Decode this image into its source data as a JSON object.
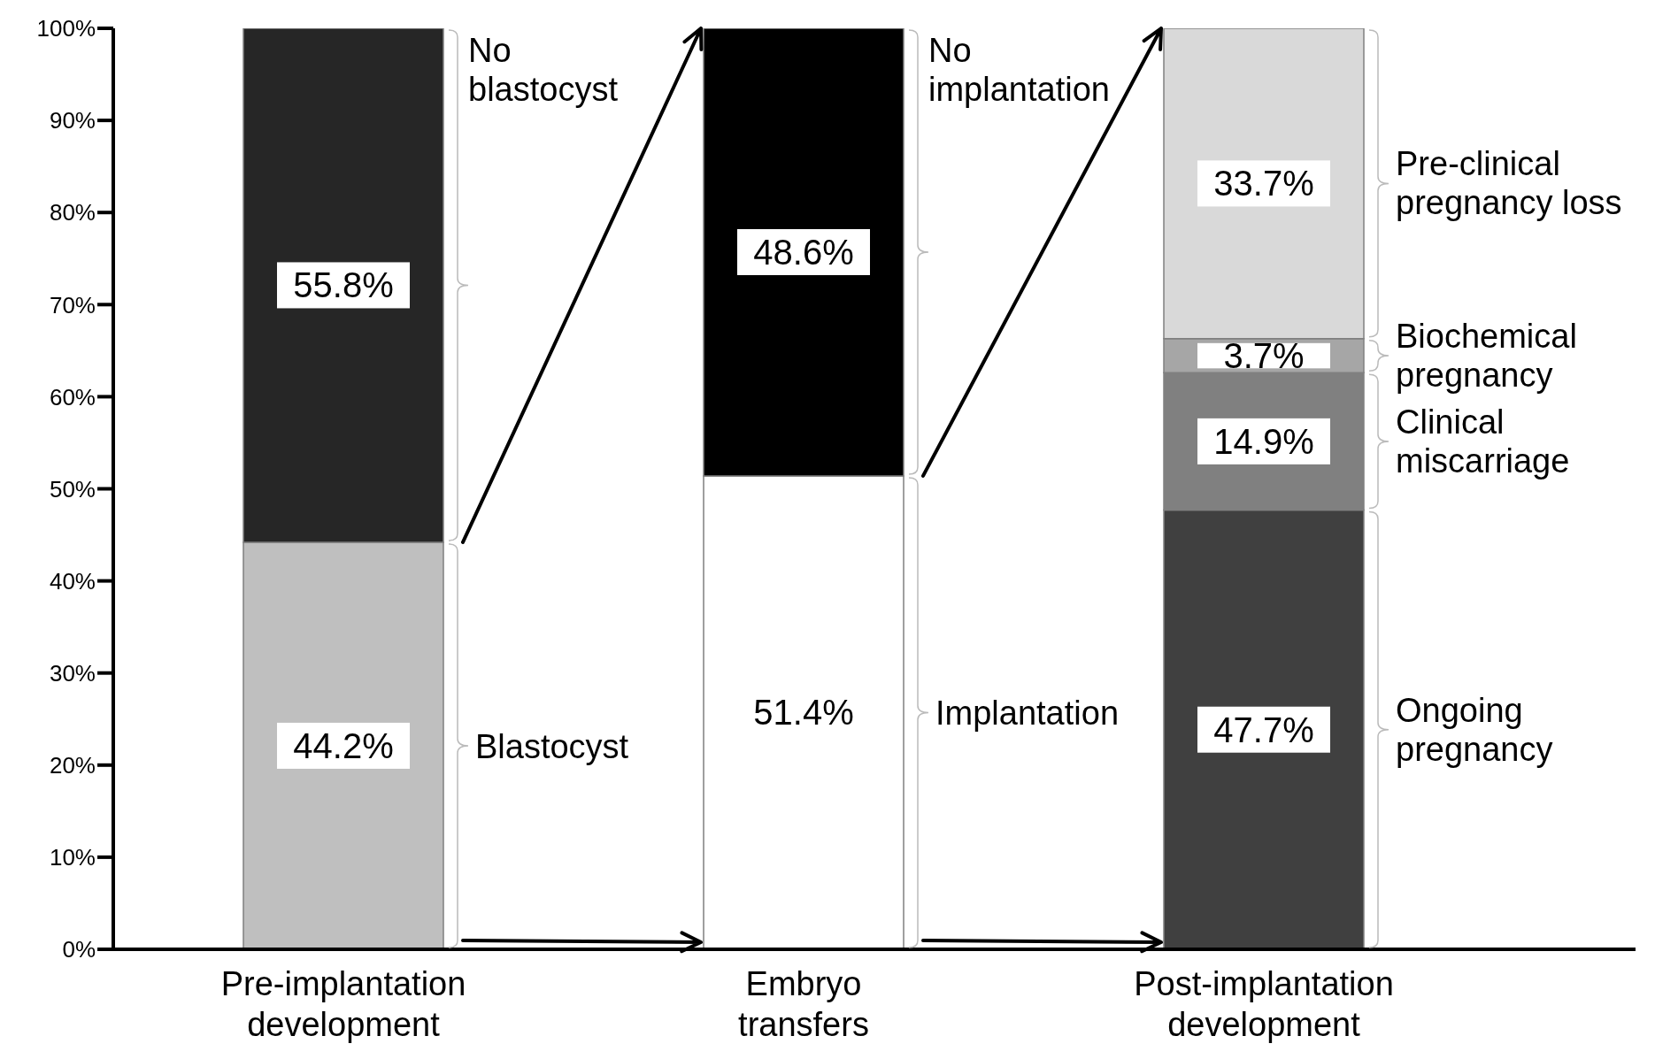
{
  "chart_data": {
    "type": "bar",
    "stacked": true,
    "categories": [
      "Pre-implantation development",
      "Embryo transfers",
      "Post-implantation development"
    ],
    "series": [
      {
        "colors": [
          "#bfbfbf",
          "#ffffff",
          "#404040"
        ],
        "values": [
          44.2,
          51.4,
          47.7
        ],
        "value_labels": [
          "44.2%",
          "51.4%",
          "47.7%"
        ]
      },
      {
        "colors": [
          "#262626",
          "#000000",
          "#808080"
        ],
        "values": [
          55.8,
          48.6,
          14.9
        ],
        "value_labels": [
          "55.8%",
          "48.6%",
          "14.9%"
        ]
      },
      {
        "colors": [
          "#a6a6a6",
          "#a6a6a6",
          "#a6a6a6"
        ],
        "values": [
          null,
          null,
          3.7
        ],
        "value_labels": [
          null,
          null,
          "3.7%"
        ]
      },
      {
        "colors": [
          "#d9d9d9",
          "#d9d9d9",
          "#d9d9d9"
        ],
        "values": [
          null,
          null,
          33.7
        ],
        "value_labels": [
          null,
          null,
          "33.7%"
        ]
      }
    ],
    "ylim": [
      0,
      100
    ],
    "yticks": [
      {
        "value": 0,
        "label": "0%"
      },
      {
        "value": 10,
        "label": "10%"
      },
      {
        "value": 20,
        "label": "20%"
      },
      {
        "value": 30,
        "label": "30%"
      },
      {
        "value": 40,
        "label": "40%"
      },
      {
        "value": 50,
        "label": "50%"
      },
      {
        "value": 60,
        "label": "60%"
      },
      {
        "value": 70,
        "label": "70%"
      },
      {
        "value": 80,
        "label": "80%"
      },
      {
        "value": 90,
        "label": "90%"
      },
      {
        "value": 100,
        "label": "100%"
      }
    ],
    "annotations": [
      "Blastocyst",
      "No blastocyst",
      "Implantation",
      "No implantation",
      "Ongoing pregnancy",
      "Clinical miscarriage",
      "Biochemical pregnancy",
      "Pre-clinical pregnancy loss"
    ]
  }
}
